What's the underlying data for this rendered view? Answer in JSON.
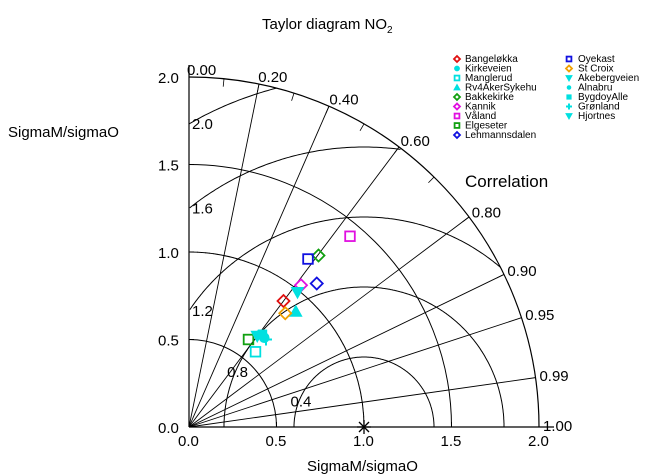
{
  "chart_data": {
    "type": "taylor",
    "title_main": "Taylor diagram NO",
    "title_sub": "2",
    "xlabel": "SigmaM/sigmaO",
    "ylabel": "SigmaM/sigmaO",
    "xlim": [
      0,
      2.0
    ],
    "ylim": [
      0,
      2.0
    ],
    "x_ticks": [
      "0.0",
      "0.5",
      "1.0",
      "1.5",
      "2.0"
    ],
    "y_ticks": [
      "0.0",
      "0.5",
      "1.0",
      "1.5",
      "2.0"
    ],
    "std_arcs": [
      0.5,
      1.0,
      1.5,
      2.0
    ],
    "reference_point": 1.0,
    "correlation_title": "Correlation",
    "correlation_ticks": [
      {
        "r": 0.0,
        "label": "0.00"
      },
      {
        "r": 0.2,
        "label": "0.20"
      },
      {
        "r": 0.4,
        "label": "0.40"
      },
      {
        "r": 0.6,
        "label": "0.60"
      },
      {
        "r": 0.8,
        "label": "0.80"
      },
      {
        "r": 0.9,
        "label": "0.90"
      },
      {
        "r": 0.95,
        "label": "0.95"
      },
      {
        "r": 0.99,
        "label": "0.99"
      },
      {
        "r": 1.0,
        "label": "1.00"
      }
    ],
    "rms_arcs": [
      0.4,
      0.8,
      1.2,
      1.6,
      2.0
    ],
    "rms_labels": [
      "0.4",
      "0.8",
      "1.2",
      "1.6",
      "2.0"
    ],
    "series": [
      {
        "name": "Bangeløkka",
        "color": "#e01010",
        "marker": "diamond",
        "x": 0.54,
        "y": 0.72
      },
      {
        "name": "Kirkeveien",
        "color": "#00e0e0",
        "marker": "circle",
        "x": 0.43,
        "y": 0.51
      },
      {
        "name": "Manglerud",
        "color": "#00e0e0",
        "marker": "square",
        "x": 0.38,
        "y": 0.43
      },
      {
        "name": "Rv4AkerSykehu",
        "color": "#00e0e0",
        "marker": "triangle",
        "x": 0.61,
        "y": 0.66
      },
      {
        "name": "Bakkekirke",
        "color": "#10a010",
        "marker": "diamond",
        "x": 0.74,
        "y": 0.98
      },
      {
        "name": "Kannik",
        "color": "#e010e0",
        "marker": "diamond",
        "x": 0.64,
        "y": 0.81
      },
      {
        "name": "Våland",
        "color": "#e010e0",
        "marker": "square",
        "x": 0.92,
        "y": 1.09
      },
      {
        "name": "Elgeseter",
        "color": "#10a010",
        "marker": "square",
        "x": 0.34,
        "y": 0.5
      },
      {
        "name": "Lehmannsdalen",
        "color": "#1010e0",
        "marker": "diamond",
        "x": 0.73,
        "y": 0.82
      },
      {
        "name": "Oyekast",
        "color": "#1010e0",
        "marker": "square",
        "x": 0.68,
        "y": 0.96
      },
      {
        "name": "St Croix",
        "color": "#f0a000",
        "marker": "diamond",
        "x": 0.55,
        "y": 0.65
      },
      {
        "name": "Akebergveien",
        "color": "#00e0e0",
        "marker": "triangle-down",
        "x": 0.62,
        "y": 0.77
      },
      {
        "name": "Alnabru",
        "color": "#00e0e0",
        "marker": "dot",
        "x": 0.4,
        "y": 0.53
      },
      {
        "name": "BygdoyAlle",
        "color": "#00e0e0",
        "marker": "square-filled",
        "x": 0.42,
        "y": 0.53
      },
      {
        "name": "Grønland",
        "color": "#00e0e0",
        "marker": "plus",
        "x": 0.44,
        "y": 0.5
      },
      {
        "name": "Hjortnes",
        "color": "#00e0e0",
        "marker": "triangle-down",
        "x": 0.39,
        "y": 0.52
      }
    ]
  }
}
